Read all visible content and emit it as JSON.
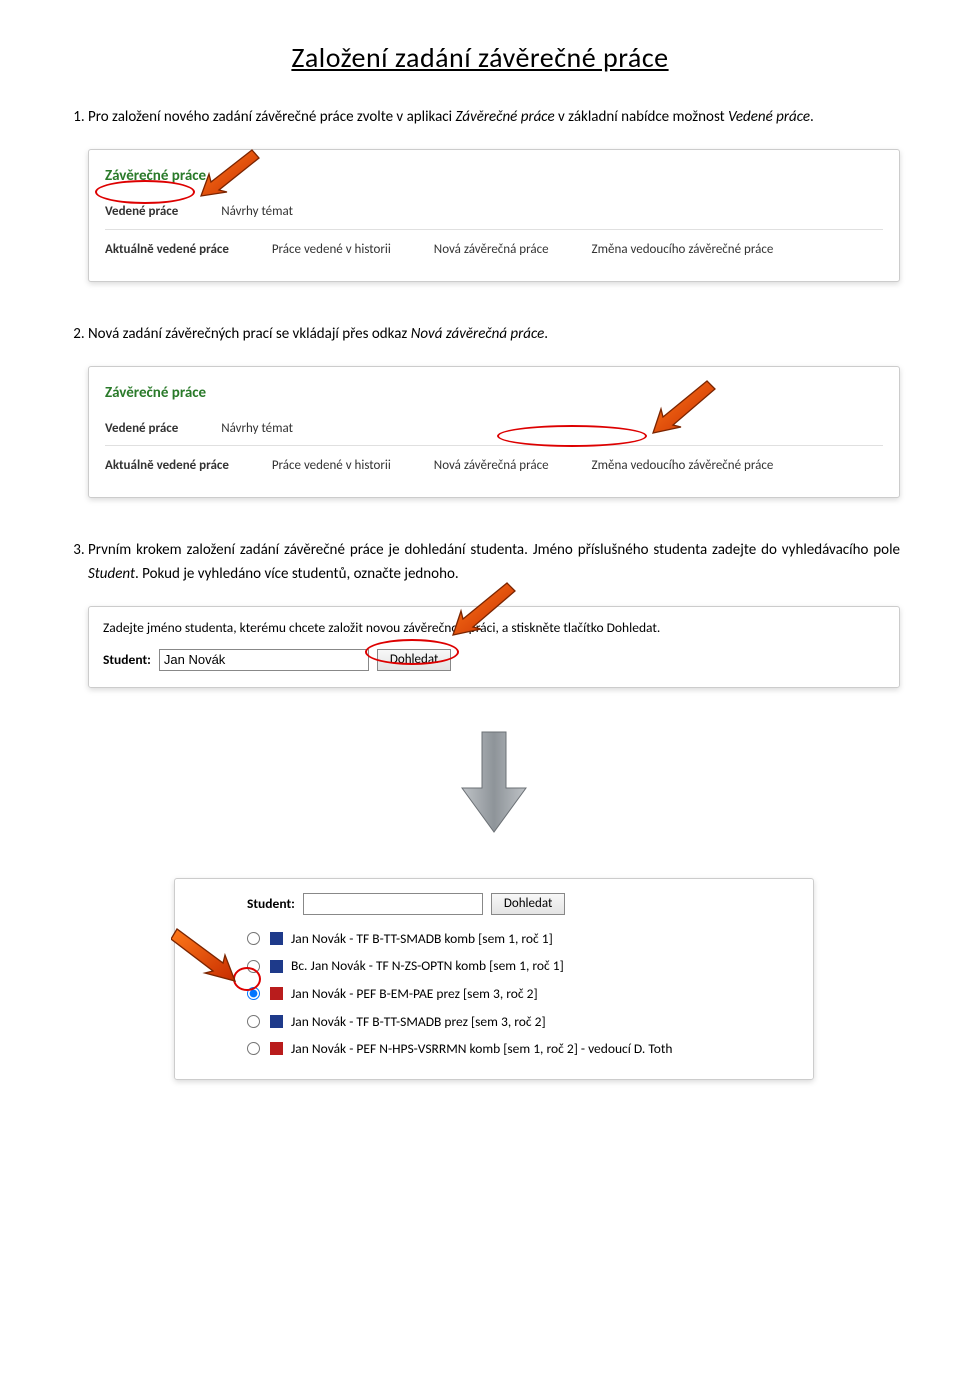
{
  "page_title": "Založení zadání závěrečné práce",
  "step1": {
    "prefix": "Pro založení nového zadání závěrečné práce zvolte v aplikaci ",
    "em1": "Závěrečné práce",
    "mid": " v základní nabídce možnost ",
    "em2": "Vedené práce",
    "suffix": "."
  },
  "panel1": {
    "heading": "Závěrečné práce",
    "top_tab1": "Vedené práce",
    "top_tab2": "Návrhy témat",
    "bot_tab1": "Aktuálně vedené práce",
    "bot_tab2": "Práce vedené v historii",
    "bot_tab3": "Nová závěrečná práce",
    "bot_tab4": "Změna vedoucího závěrečné práce"
  },
  "step2": {
    "prefix": "Nová zadání závěrečných prací se vkládají přes odkaz ",
    "em": "Nová závěrečná práce",
    "suffix": "."
  },
  "panel2": {
    "heading": "Závěrečné práce",
    "top_tab1": "Vedené práce",
    "top_tab2": "Návrhy témat",
    "bot_tab1": "Aktuálně vedené práce",
    "bot_tab2": "Práce vedené v historii",
    "bot_tab3": "Nová závěrečná práce",
    "bot_tab4": "Změna vedoucího závěrečné práce"
  },
  "step3": {
    "s1": "Prvním krokem založení zadání závěrečné práce je dohledání studenta. Jméno příslušného studenta zadejte do vyhledávacího pole ",
    "em": "Student",
    "s2": ". Pokud je vyhledáno více studentů, označte jednoho."
  },
  "search": {
    "instr": "Zadejte jméno studenta, kterému chcete založit novou závěrečnou práci, a stiskněte tlačítko Dohledat.",
    "label": "Student:",
    "value": "Jan Novák",
    "btn": "Dohledat"
  },
  "results": {
    "label": "Student:",
    "value": "",
    "btn": "Dohledat",
    "items": [
      {
        "text": "Jan Novák - TF B-TT-SMADB komb [sem 1, roč 1]",
        "color": "#1e3a8a",
        "checked": false
      },
      {
        "text": "Bc. Jan Novák - TF N-ZS-OPTN komb [sem 1, roč 1]",
        "color": "#1e3a8a",
        "checked": false
      },
      {
        "text": "Jan Novák - PEF B-EM-PAE prez [sem 3, roč 2]",
        "color": "#b91c1c",
        "checked": true
      },
      {
        "text": "Jan Novák - TF B-TT-SMADB prez [sem 3, roč 2]",
        "color": "#1e3a8a",
        "checked": false
      },
      {
        "text": "Jan Novák - PEF N-HPS-VSRRMN komb [sem 1, roč 2] - vedoucí D. Toth",
        "color": "#b91c1c",
        "checked": false
      }
    ]
  },
  "colors": {
    "arrow_fill": "#e63900",
    "arrow_stroke": "#8a2b00",
    "down_arrow": "#9aa0a6"
  }
}
